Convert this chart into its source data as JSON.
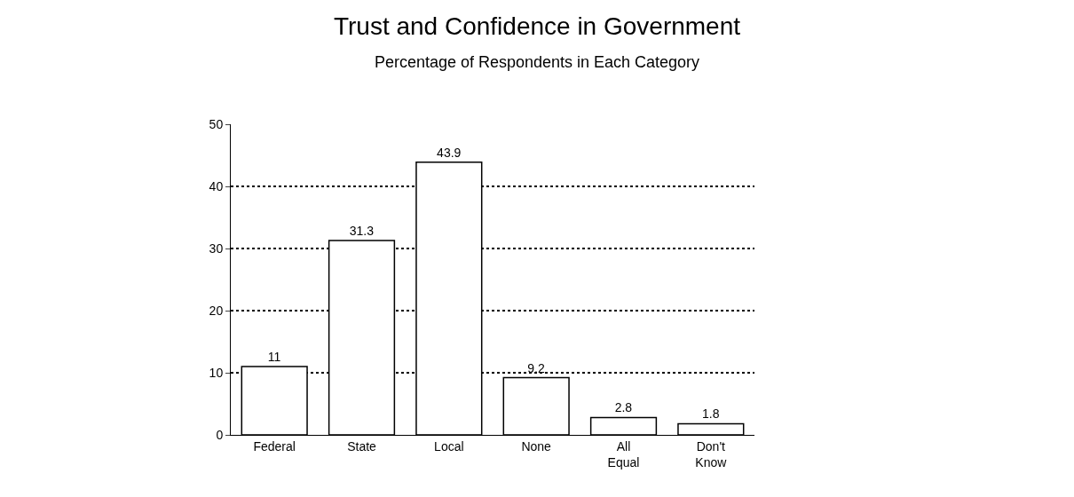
{
  "chart_data": {
    "type": "bar",
    "title": "Trust and Confidence in Government",
    "subtitle": "Percentage of Respondents in Each Category",
    "categories": [
      "Federal",
      "State",
      "Local",
      "None",
      "All\nEqual",
      "Don't\nKnow"
    ],
    "values": [
      11,
      31.3,
      43.9,
      9.2,
      2.8,
      1.8
    ],
    "color": "#ffffff",
    "ylim": [
      0,
      50
    ],
    "yticks": [
      0,
      10,
      20,
      30,
      40,
      50
    ],
    "grid": "y",
    "data_labels": true
  }
}
